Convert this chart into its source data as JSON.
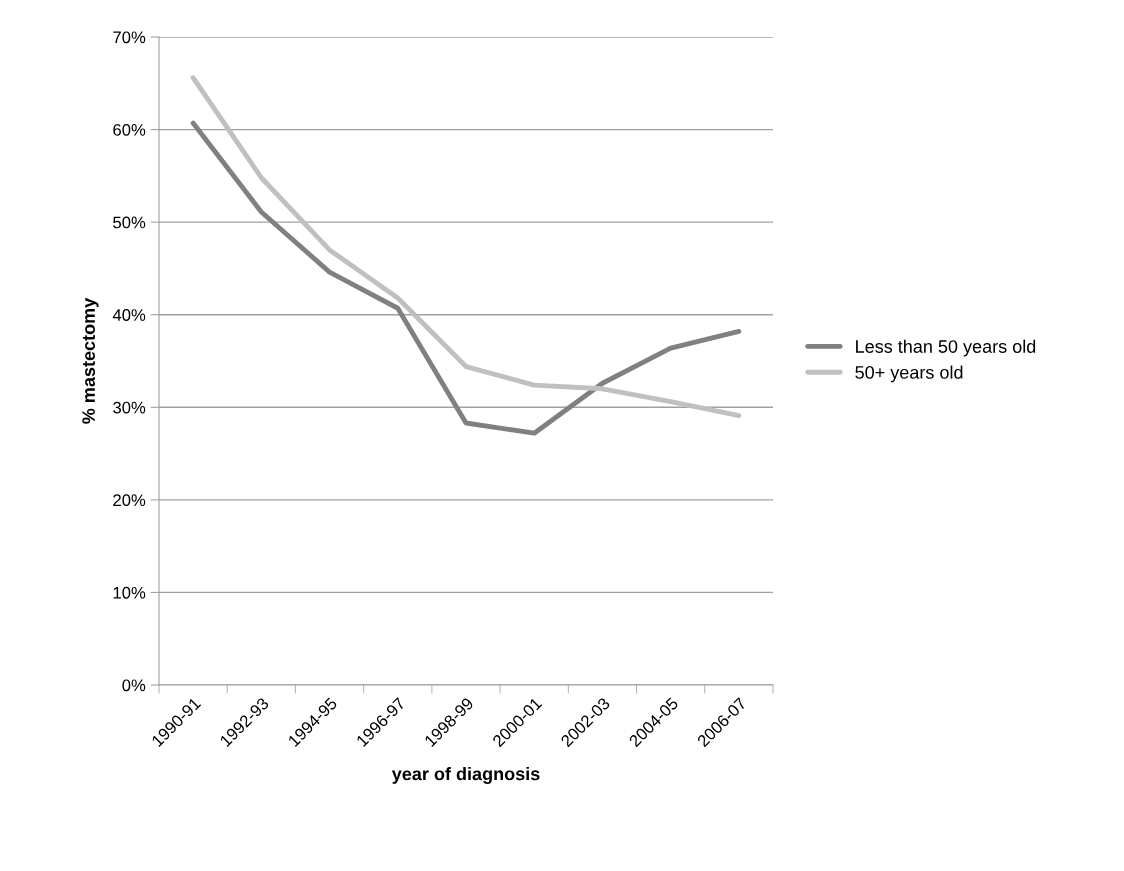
{
  "chart_data": {
    "type": "line",
    "xlabel": "year of diagnosis",
    "ylabel": "% mastectomy",
    "categories": [
      "1990-91",
      "1992-93",
      "1994-95",
      "1996-97",
      "1998-99",
      "2000-01",
      "2002-03",
      "2004-05",
      "2006-07"
    ],
    "series": [
      {
        "name": "Less than 50 years old",
        "color": "#808080",
        "values": [
          60.7,
          51.1,
          44.6,
          40.7,
          28.3,
          27.2,
          32.6,
          36.4,
          38.2
        ]
      },
      {
        "name": "50+ years old",
        "color": "#c0c0c0",
        "values": [
          65.6,
          54.8,
          47.0,
          41.8,
          34.4,
          32.4,
          32.0,
          30.6,
          29.1
        ]
      }
    ],
    "ylim": [
      0,
      70
    ],
    "yticks": [
      {
        "value": 0,
        "label": "0%"
      },
      {
        "value": 10,
        "label": "10%"
      },
      {
        "value": 20,
        "label": "20%"
      },
      {
        "value": 30,
        "label": "30%"
      },
      {
        "value": 40,
        "label": "40%"
      },
      {
        "value": 50,
        "label": "50%"
      },
      {
        "value": 60,
        "label": "60%"
      },
      {
        "value": 70,
        "label": "70%"
      }
    ],
    "grid": "y",
    "legend": "right",
    "marker": "none",
    "line_style": "solid"
  }
}
